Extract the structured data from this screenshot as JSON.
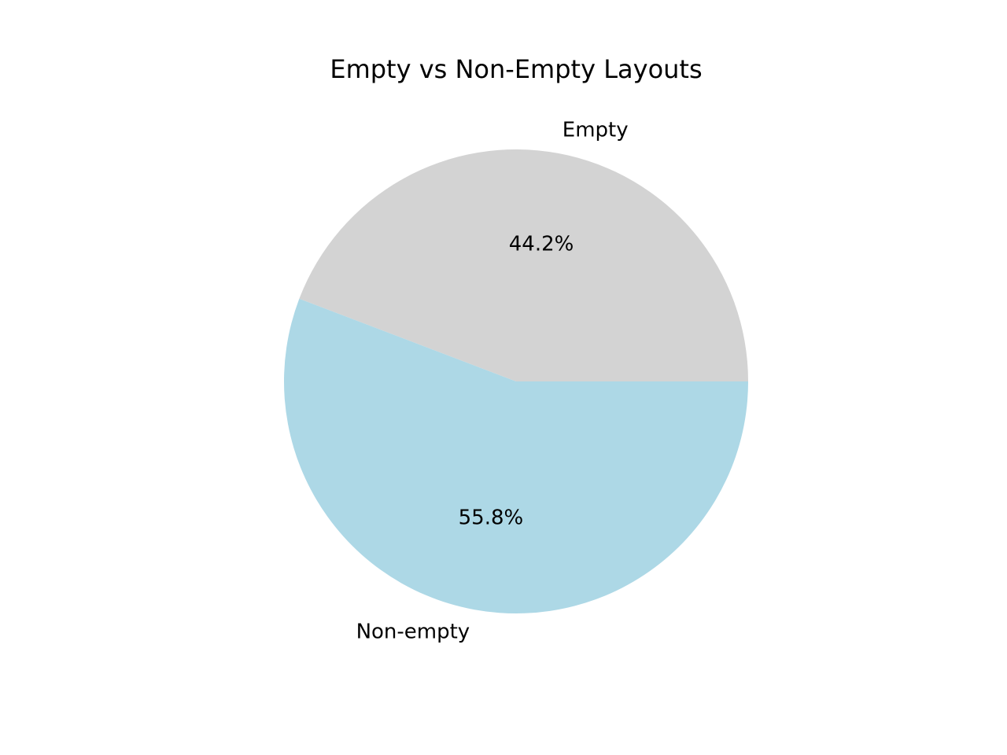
{
  "chart_data": {
    "type": "pie",
    "title": "Empty vs Non-Empty Layouts",
    "slices": [
      {
        "label": "Empty",
        "value": 44.2,
        "percent_label": "44.2%",
        "color": "#d3d3d3"
      },
      {
        "label": "Non-empty",
        "value": 55.8,
        "percent_label": "55.8%",
        "color": "#add8e6"
      }
    ]
  }
}
